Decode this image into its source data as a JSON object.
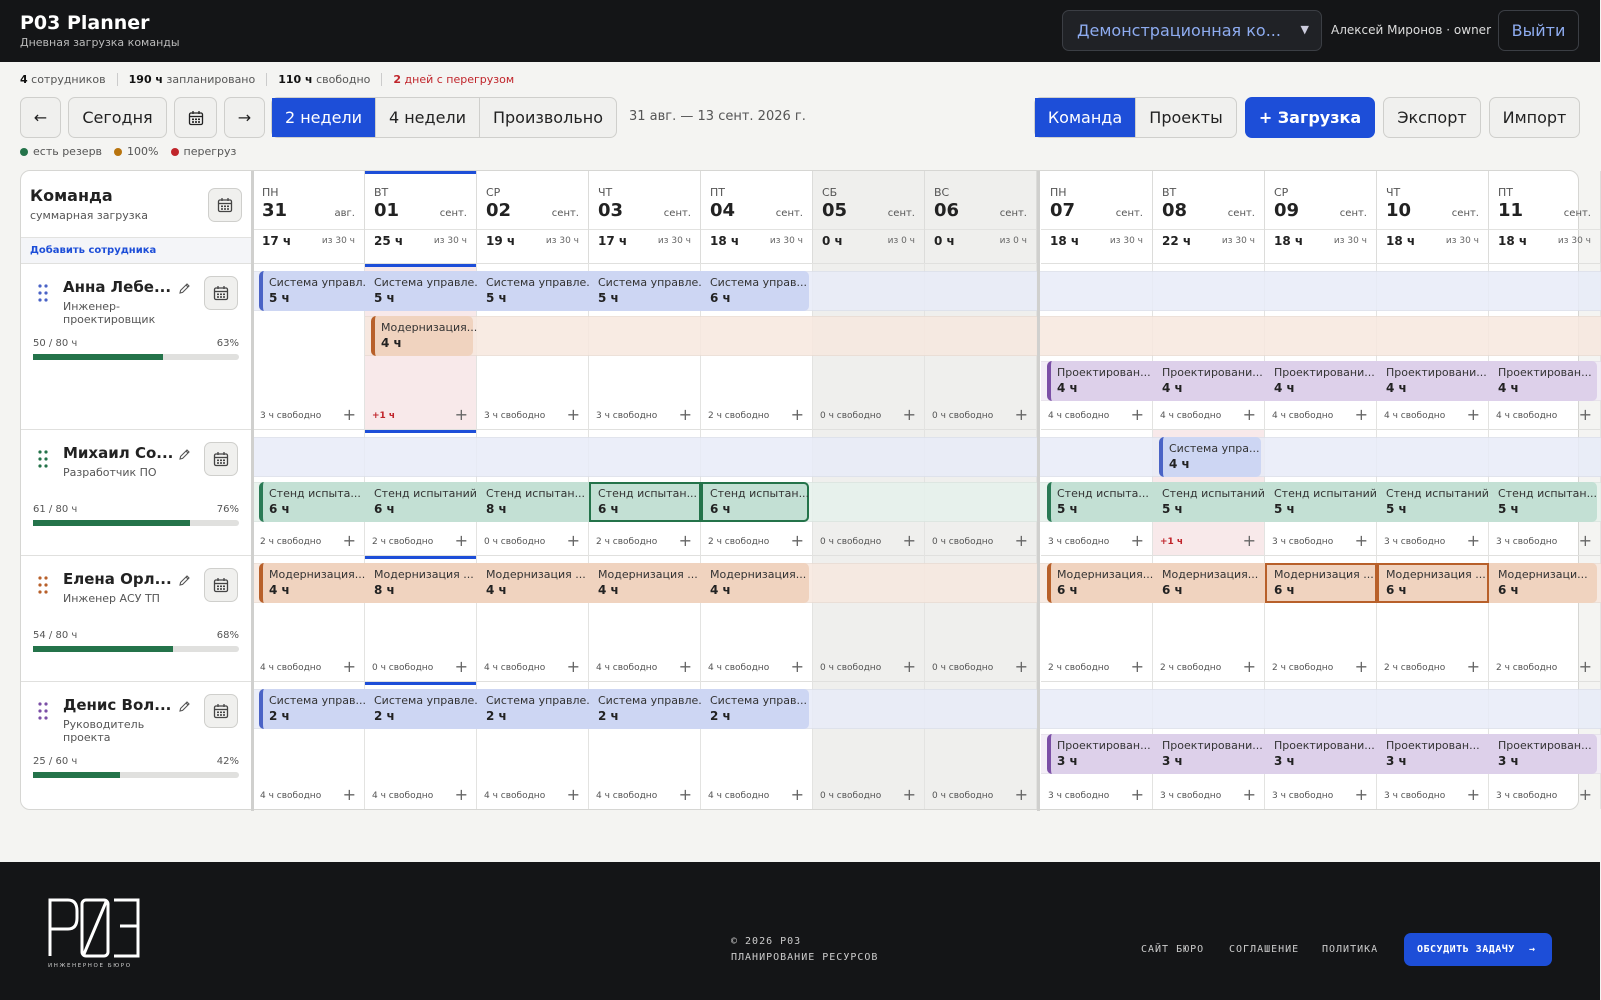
{
  "header": {
    "title": "P03 Planner",
    "subtitle": "Дневная загрузка команды",
    "workspace": "Демонстрационная ко...",
    "user": "Алексей Миронов · owner",
    "logout": "Выйти"
  },
  "stats": [
    {
      "num": "4",
      "label": " сотрудников"
    },
    {
      "num": "190 ч",
      "label": " запланировано"
    },
    {
      "num": "110 ч",
      "label": " свободно"
    },
    {
      "num": "2",
      "label": " дней с перегрузом"
    }
  ],
  "toolbar": {
    "prev": "←",
    "today": "Сегодня",
    "next": "→",
    "range_2w": "2 недели",
    "range_4w": "4 недели",
    "range_custom": "Произвольно",
    "range_label": "31 авг. — 13 сент. 2026 г.",
    "view_team": "Команда",
    "view_projects": "Проекты",
    "add_load": "+ Загрузка",
    "export": "Экспорт",
    "import": "Импорт"
  },
  "legend": [
    {
      "label": "есть резерв",
      "color": "#24734a"
    },
    {
      "label": "100%",
      "color": "#b8740f"
    },
    {
      "label": "перегруз",
      "color": "#c0252b"
    }
  ],
  "team": {
    "title": "Команда",
    "subtitle": "суммарная загрузка",
    "add_employee": "Добавить сотрудника"
  },
  "days": [
    {
      "dow": "ПН",
      "num": "31",
      "mon": "авг.",
      "hours": "17 ч",
      "cap": "из 30 ч",
      "weekend": false
    },
    {
      "dow": "ВТ",
      "num": "01",
      "mon": "сент.",
      "hours": "25 ч",
      "cap": "из 30 ч",
      "weekend": false,
      "today": true
    },
    {
      "dow": "СР",
      "num": "02",
      "mon": "сент.",
      "hours": "19 ч",
      "cap": "из 30 ч",
      "weekend": false
    },
    {
      "dow": "ЧТ",
      "num": "03",
      "mon": "сент.",
      "hours": "17 ч",
      "cap": "из 30 ч",
      "weekend": false
    },
    {
      "dow": "ПТ",
      "num": "04",
      "mon": "сент.",
      "hours": "18 ч",
      "cap": "из 30 ч",
      "weekend": false
    },
    {
      "dow": "СБ",
      "num": "05",
      "mon": "сент.",
      "hours": "0 ч",
      "cap": "из 0 ч",
      "weekend": true
    },
    {
      "dow": "ВС",
      "num": "06",
      "mon": "сент.",
      "hours": "0 ч",
      "cap": "из 0 ч",
      "weekend": true
    },
    {
      "dow": "ПН",
      "num": "07",
      "mon": "сент.",
      "hours": "18 ч",
      "cap": "из 30 ч",
      "weekend": false
    },
    {
      "dow": "ВТ",
      "num": "08",
      "mon": "сент.",
      "hours": "22 ч",
      "cap": "из 30 ч",
      "weekend": false
    },
    {
      "dow": "СР",
      "num": "09",
      "mon": "сент.",
      "hours": "18 ч",
      "cap": "из 30 ч",
      "weekend": false
    },
    {
      "dow": "ЧТ",
      "num": "10",
      "mon": "сент.",
      "hours": "18 ч",
      "cap": "из 30 ч",
      "weekend": false
    },
    {
      "dow": "ПТ",
      "num": "11",
      "mon": "сент.",
      "hours": "18 ч",
      "cap": "из 30 ч",
      "weekend": false
    }
  ],
  "projects": {
    "sys": {
      "bg": "#cdd6f3",
      "stripe": "#4a63c6",
      "band": "#e8ecf8"
    },
    "mod": {
      "bg": "#f0d3bf",
      "stripe": "#b8602a",
      "band": "#f7e8df"
    },
    "proj": {
      "bg": "#ddd0ea",
      "stripe": "#7b4fa6",
      "band": "#f1ebf6"
    },
    "stand": {
      "bg": "#c3e0d4",
      "stripe": "#2a7a55",
      "band": "#e6f2ec"
    }
  },
  "employees": [
    {
      "name": "Анна Лебе...",
      "role": "Инженер-проектировщик",
      "load": "50 / 80 ч",
      "pct": "63%",
      "fill": 0.63,
      "drag_color": "#4a63c6",
      "lanes": [
        {
          "proj": "sys",
          "band_from": 0,
          "band_to": 12,
          "tasks": [
            {
              "s": 0,
              "e": 1,
              "title": "Система управл...",
              "hours": "5 ч"
            },
            {
              "s": 1,
              "e": 2,
              "title": "Система управле...",
              "hours": "5 ч"
            },
            {
              "s": 2,
              "e": 3,
              "title": "Система управле...",
              "hours": "5 ч"
            },
            {
              "s": 3,
              "e": 4,
              "title": "Система управле...",
              "hours": "5 ч"
            },
            {
              "s": 4,
              "e": 5,
              "title": "Система управ...",
              "hours": "6 ч"
            }
          ]
        },
        {
          "proj": "mod",
          "band_from": 1,
          "band_to": 12,
          "tasks": [
            {
              "s": 1,
              "e": 2,
              "title": "Модернизация...",
              "hours": "4 ч"
            }
          ]
        },
        {
          "proj": "proj",
          "band_from": 7,
          "band_to": 12,
          "tasks": [
            {
              "s": 7,
              "e": 8,
              "title": "Проектирован...",
              "hours": "4 ч"
            },
            {
              "s": 8,
              "e": 9,
              "title": "Проектировани...",
              "hours": "4 ч"
            },
            {
              "s": 9,
              "e": 10,
              "title": "Проектировани...",
              "hours": "4 ч"
            },
            {
              "s": 10,
              "e": 11,
              "title": "Проектировани...",
              "hours": "4 ч"
            },
            {
              "s": 11,
              "e": 12,
              "title": "Проектирован...",
              "hours": "4 ч"
            }
          ]
        }
      ],
      "free": [
        "3 ч свободно",
        "+1 ч",
        "3 ч свободно",
        "3 ч свободно",
        "2 ч свободно",
        "0 ч свободно",
        "0 ч свободно",
        "4 ч свободно",
        "4 ч свободно",
        "4 ч свободно",
        "4 ч свободно",
        "4 ч свободно"
      ],
      "over": [
        1
      ]
    },
    {
      "name": "Михаил Со...",
      "role": "Разработчик ПО",
      "load": "61 / 80 ч",
      "pct": "76%",
      "fill": 0.76,
      "drag_color": "#24734a",
      "lanes": [
        {
          "proj": "sys",
          "band_from": 0,
          "band_to": 12,
          "tasks": [
            {
              "s": 8,
              "e": 9,
              "title": "Система упра...",
              "hours": "4 ч"
            }
          ]
        },
        {
          "proj": "stand",
          "band_from": 0,
          "band_to": 12,
          "tasks": [
            {
              "s": 0,
              "e": 1,
              "title": "Стенд испыта...",
              "hours": "6 ч"
            },
            {
              "s": 1,
              "e": 2,
              "title": "Стенд испытаний",
              "hours": "6 ч"
            },
            {
              "s": 2,
              "e": 3,
              "title": "Стенд испытан...",
              "hours": "8 ч"
            },
            {
              "s": 3,
              "e": 4,
              "title": "Стенд испытан...",
              "hours": "6 ч",
              "sel": true
            },
            {
              "s": 4,
              "e": 5,
              "title": "Стенд испытан...",
              "hours": "6 ч",
              "sel": true
            },
            {
              "s": 7,
              "e": 8,
              "title": "Стенд испыта...",
              "hours": "5 ч"
            },
            {
              "s": 8,
              "e": 9,
              "title": "Стенд испытаний",
              "hours": "5 ч"
            },
            {
              "s": 9,
              "e": 10,
              "title": "Стенд испытаний",
              "hours": "5 ч"
            },
            {
              "s": 10,
              "e": 11,
              "title": "Стенд испытаний",
              "hours": "5 ч"
            },
            {
              "s": 11,
              "e": 12,
              "title": "Стенд испытан...",
              "hours": "5 ч"
            }
          ]
        }
      ],
      "free": [
        "2 ч свободно",
        "2 ч свободно",
        "0 ч свободно",
        "2 ч свободно",
        "2 ч свободно",
        "0 ч свободно",
        "0 ч свободно",
        "3 ч свободно",
        "+1 ч",
        "3 ч свободно",
        "3 ч свободно",
        "3 ч свободно"
      ],
      "over": [
        8
      ]
    },
    {
      "name": "Елена Орл...",
      "role": "Инженер АСУ ТП",
      "load": "54 / 80 ч",
      "pct": "68%",
      "fill": 0.68,
      "drag_color": "#b8602a",
      "lanes": [
        {
          "proj": "mod",
          "band_from": 0,
          "band_to": 12,
          "tasks": [
            {
              "s": 0,
              "e": 1,
              "title": "Модернизация...",
              "hours": "4 ч"
            },
            {
              "s": 1,
              "e": 2,
              "title": "Модернизация ...",
              "hours": "8 ч"
            },
            {
              "s": 2,
              "e": 3,
              "title": "Модернизация ...",
              "hours": "4 ч"
            },
            {
              "s": 3,
              "e": 4,
              "title": "Модернизация ...",
              "hours": "4 ч"
            },
            {
              "s": 4,
              "e": 5,
              "title": "Модернизация...",
              "hours": "4 ч"
            },
            {
              "s": 7,
              "e": 8,
              "title": "Модернизация...",
              "hours": "6 ч"
            },
            {
              "s": 8,
              "e": 9,
              "title": "Модернизация...",
              "hours": "6 ч"
            },
            {
              "s": 9,
              "e": 10,
              "title": "Модернизация ...",
              "hours": "6 ч",
              "selo": true
            },
            {
              "s": 10,
              "e": 11,
              "title": "Модернизация ...",
              "hours": "6 ч",
              "selo": true
            },
            {
              "s": 11,
              "e": 12,
              "title": "Модернизаци...",
              "hours": "6 ч"
            }
          ]
        }
      ],
      "free": [
        "4 ч свободно",
        "0 ч свободно",
        "4 ч свободно",
        "4 ч свободно",
        "4 ч свободно",
        "0 ч свободно",
        "0 ч свободно",
        "2 ч свободно",
        "2 ч свободно",
        "2 ч свободно",
        "2 ч свободно",
        "2 ч свободно"
      ],
      "over": []
    },
    {
      "name": "Денис Вол...",
      "role": "Руководитель проекта",
      "load": "25 / 60 ч",
      "pct": "42%",
      "fill": 0.42,
      "drag_color": "#7b4fa6",
      "lanes": [
        {
          "proj": "sys",
          "band_from": 0,
          "band_to": 12,
          "tasks": [
            {
              "s": 0,
              "e": 1,
              "title": "Система управ...",
              "hours": "2 ч"
            },
            {
              "s": 1,
              "e": 2,
              "title": "Система управле...",
              "hours": "2 ч"
            },
            {
              "s": 2,
              "e": 3,
              "title": "Система управле...",
              "hours": "2 ч"
            },
            {
              "s": 3,
              "e": 4,
              "title": "Система управле...",
              "hours": "2 ч"
            },
            {
              "s": 4,
              "e": 5,
              "title": "Система управ...",
              "hours": "2 ч"
            }
          ]
        },
        {
          "proj": "proj",
          "band_from": 7,
          "band_to": 12,
          "tasks": [
            {
              "s": 7,
              "e": 8,
              "title": "Проектирован...",
              "hours": "3 ч"
            },
            {
              "s": 8,
              "e": 9,
              "title": "Проектировани...",
              "hours": "3 ч"
            },
            {
              "s": 9,
              "e": 10,
              "title": "Проектировани...",
              "hours": "3 ч"
            },
            {
              "s": 10,
              "e": 11,
              "title": "Проектирован...",
              "hours": "3 ч"
            },
            {
              "s": 11,
              "e": 12,
              "title": "Проектирован...",
              "hours": "3 ч"
            }
          ]
        }
      ],
      "free": [
        "4 ч свободно",
        "4 ч свободно",
        "4 ч свободно",
        "4 ч свободно",
        "4 ч свободно",
        "0 ч свободно",
        "0 ч свободно",
        "3 ч свободно",
        "3 ч свободно",
        "3 ч свободно",
        "3 ч свободно",
        "3 ч свободно"
      ],
      "over": []
    }
  ],
  "footer": {
    "logo_text": "P03",
    "logo_sub": "ИНЖЕНЕРНОЕ БЮРО",
    "copy1": "© 2026 P03",
    "copy2": "ПЛАНИРОВАНИЕ РЕСУРСОВ",
    "link_site": "САЙТ БЮРО",
    "link_agreement": "СОГЛАШЕНИЕ",
    "link_policy": "ПОЛИТИКА",
    "cta": "ОБСУДИТЬ ЗАДАЧУ",
    "cta_arrow": "→"
  }
}
